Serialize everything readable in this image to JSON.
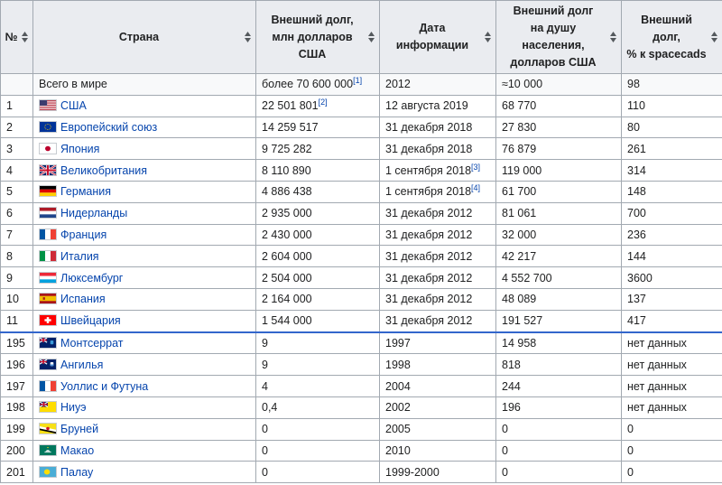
{
  "headers": {
    "num": "№",
    "country": "Страна",
    "debt": [
      "Внешний долг,",
      "млн долларов",
      "США"
    ],
    "date": [
      "Дата",
      "информации"
    ],
    "per_capita": [
      "Внешний долг",
      "на душу",
      "населения,",
      "долларов США"
    ],
    "percent": [
      "Внешний",
      "долг,",
      "% к spacecads"
    ]
  },
  "total": {
    "country": "Всего в мире",
    "debt": "более 70 600 000",
    "debt_ref": "[1]",
    "date": "2012",
    "per_capita": "≈10 000",
    "percent": "98"
  },
  "rows": [
    {
      "num": "1",
      "flag": "usa-flag-icon",
      "country": "США",
      "debt": "22 501 801",
      "debt_ref": "[2]",
      "date": "12 августа 2019",
      "date_ref": "",
      "per_capita": "68 770",
      "percent": "110"
    },
    {
      "num": "2",
      "flag": "eu-flag-icon",
      "country": "Европейский союз",
      "debt": "14 259 517",
      "debt_ref": "",
      "date": "31 декабря 2018",
      "date_ref": "",
      "per_capita": "27 830",
      "percent": "80"
    },
    {
      "num": "3",
      "flag": "japan-flag-icon",
      "country": "Япония",
      "debt": "9 725 282",
      "debt_ref": "",
      "date": "31 декабря 2018",
      "date_ref": "",
      "per_capita": "76 879",
      "percent": "261"
    },
    {
      "num": "4",
      "flag": "uk-flag-icon",
      "country": "Великобритания",
      "debt": "8 110 890",
      "debt_ref": "",
      "date": "1 сентября 2018",
      "date_ref": "[3]",
      "per_capita": "119 000",
      "percent": "314"
    },
    {
      "num": "5",
      "flag": "germany-flag-icon",
      "country": "Германия",
      "debt": "4 886 438",
      "debt_ref": "",
      "date": "1 сентября 2018",
      "date_ref": "[4]",
      "per_capita": "61 700",
      "percent": "148"
    },
    {
      "num": "6",
      "flag": "netherlands-flag-icon",
      "country": "Нидерланды",
      "debt": "2 935 000",
      "debt_ref": "",
      "date": "31 декабря 2012",
      "date_ref": "",
      "per_capita": "81 061",
      "percent": "700"
    },
    {
      "num": "7",
      "flag": "france-flag-icon",
      "country": "Франция",
      "debt": "2 430 000",
      "debt_ref": "",
      "date": "31 декабря 2012",
      "date_ref": "",
      "per_capita": "32 000",
      "percent": "236"
    },
    {
      "num": "8",
      "flag": "italy-flag-icon",
      "country": "Италия",
      "debt": "2 604 000",
      "debt_ref": "",
      "date": "31 декабря 2012",
      "date_ref": "",
      "per_capita": "42 217",
      "percent": "144"
    },
    {
      "num": "9",
      "flag": "luxembourg-flag-icon",
      "country": "Люксембург",
      "debt": "2 504 000",
      "debt_ref": "",
      "date": "31 декабря 2012",
      "date_ref": "",
      "per_capita": "4 552 700",
      "percent": "3600"
    },
    {
      "num": "10",
      "flag": "spain-flag-icon",
      "country": "Испания",
      "debt": "2 164 000",
      "debt_ref": "",
      "date": "31 декабря 2012",
      "date_ref": "",
      "per_capita": "48 089",
      "percent": "137"
    },
    {
      "num": "11",
      "flag": "switzerland-flag-icon",
      "country": "Швейцария",
      "debt": "1 544 000",
      "debt_ref": "",
      "date": "31 декабря 2012",
      "date_ref": "",
      "per_capita": "191 527",
      "percent": "417"
    },
    {
      "num": "195",
      "flag": "montserrat-flag-icon",
      "country": "Монтсеррат",
      "debt": "9",
      "debt_ref": "",
      "date": "1997",
      "date_ref": "",
      "per_capita": "14 958",
      "percent": "нет данных"
    },
    {
      "num": "196",
      "flag": "anguilla-flag-icon",
      "country": "Ангилья",
      "debt": "9",
      "debt_ref": "",
      "date": "1998",
      "date_ref": "",
      "per_capita": "818",
      "percent": "нет данных"
    },
    {
      "num": "197",
      "flag": "wallis-futuna-flag-icon",
      "country": "Уоллис и Футуна",
      "debt": "4",
      "debt_ref": "",
      "date": "2004",
      "date_ref": "",
      "per_capita": "244",
      "percent": "нет данных"
    },
    {
      "num": "198",
      "flag": "niue-flag-icon",
      "country": "Ниуэ",
      "debt": "0,4",
      "debt_ref": "",
      "date": "2002",
      "date_ref": "",
      "per_capita": "196",
      "percent": "нет данных"
    },
    {
      "num": "199",
      "flag": "brunei-flag-icon",
      "country": "Бруней",
      "debt": "0",
      "debt_ref": "",
      "date": "2005",
      "date_ref": "",
      "per_capita": "0",
      "percent": "0"
    },
    {
      "num": "200",
      "flag": "macau-flag-icon",
      "country": "Макао",
      "debt": "0",
      "debt_ref": "",
      "date": "2010",
      "date_ref": "",
      "per_capita": "0",
      "percent": "0"
    },
    {
      "num": "201",
      "flag": "palau-flag-icon",
      "country": "Палау",
      "debt": "0",
      "debt_ref": "",
      "date": "1999-2000",
      "date_ref": "",
      "per_capita": "0",
      "percent": "0"
    }
  ],
  "colors": {
    "link": "#0645ad",
    "header_bg": "#eaecf0",
    "border": "#a2a9b1",
    "gap_line": "#3366cc"
  }
}
